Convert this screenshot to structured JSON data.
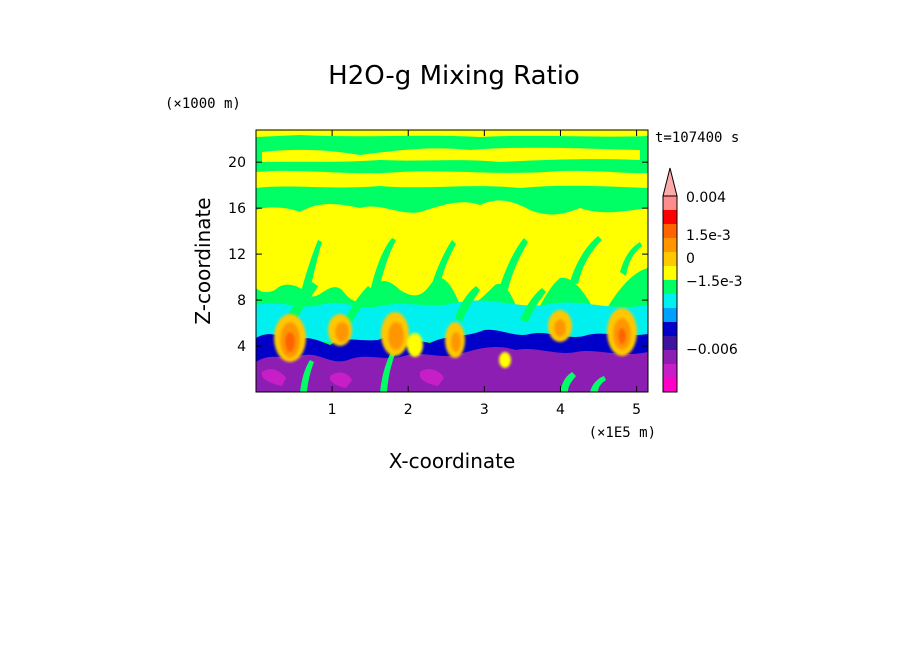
{
  "chart_data": {
    "type": "heatmap",
    "title": "H2O-g Mixing Ratio",
    "xlabel": "X-coordinate",
    "ylabel": "Z-coordinate",
    "x_unit": "(×1E5 m)",
    "y_unit": "(×1000 m)",
    "time_label": "t=107400 s",
    "xlim": [
      0,
      5.15
    ],
    "ylim": [
      0,
      22.8
    ],
    "x_ticks": [
      1,
      2,
      3,
      4,
      5
    ],
    "y_ticks": [
      4,
      8,
      12,
      16,
      20
    ],
    "legend_position": "right",
    "colorbar": {
      "levels": [
        {
          "value": "below -0.006",
          "color": "#ff00c8"
        },
        {
          "value": "-0.006",
          "color": "#c81ec8"
        },
        {
          "value": "-0.003",
          "color": "#8c1eb4"
        },
        {
          "value": "-1.5e-3",
          "color": "#3c14a0"
        },
        {
          "value": "-1e-3",
          "color": "#0000c8"
        },
        {
          "value": "-5e-4",
          "color": "#00a0ff"
        },
        {
          "value": "-2.5e-4",
          "color": "#00f0f0"
        },
        {
          "value": "0",
          "color": "#00ff64"
        },
        {
          "value": "2.5e-4",
          "color": "#ffff00"
        },
        {
          "value": "5e-4",
          "color": "#ffc800"
        },
        {
          "value": "1e-3",
          "color": "#ff9600"
        },
        {
          "value": "1.5e-3",
          "color": "#ff6400"
        },
        {
          "value": "2e-3",
          "color": "#ff0000"
        },
        {
          "value": "0.004",
          "color": "#ff8c8c"
        },
        {
          "value": "above 0.004",
          "color": "#ffaaaa"
        }
      ],
      "labels": [
        "0.004",
        "1.5e-3",
        "0",
        "−1.5e-3",
        "−0.006"
      ]
    }
  }
}
